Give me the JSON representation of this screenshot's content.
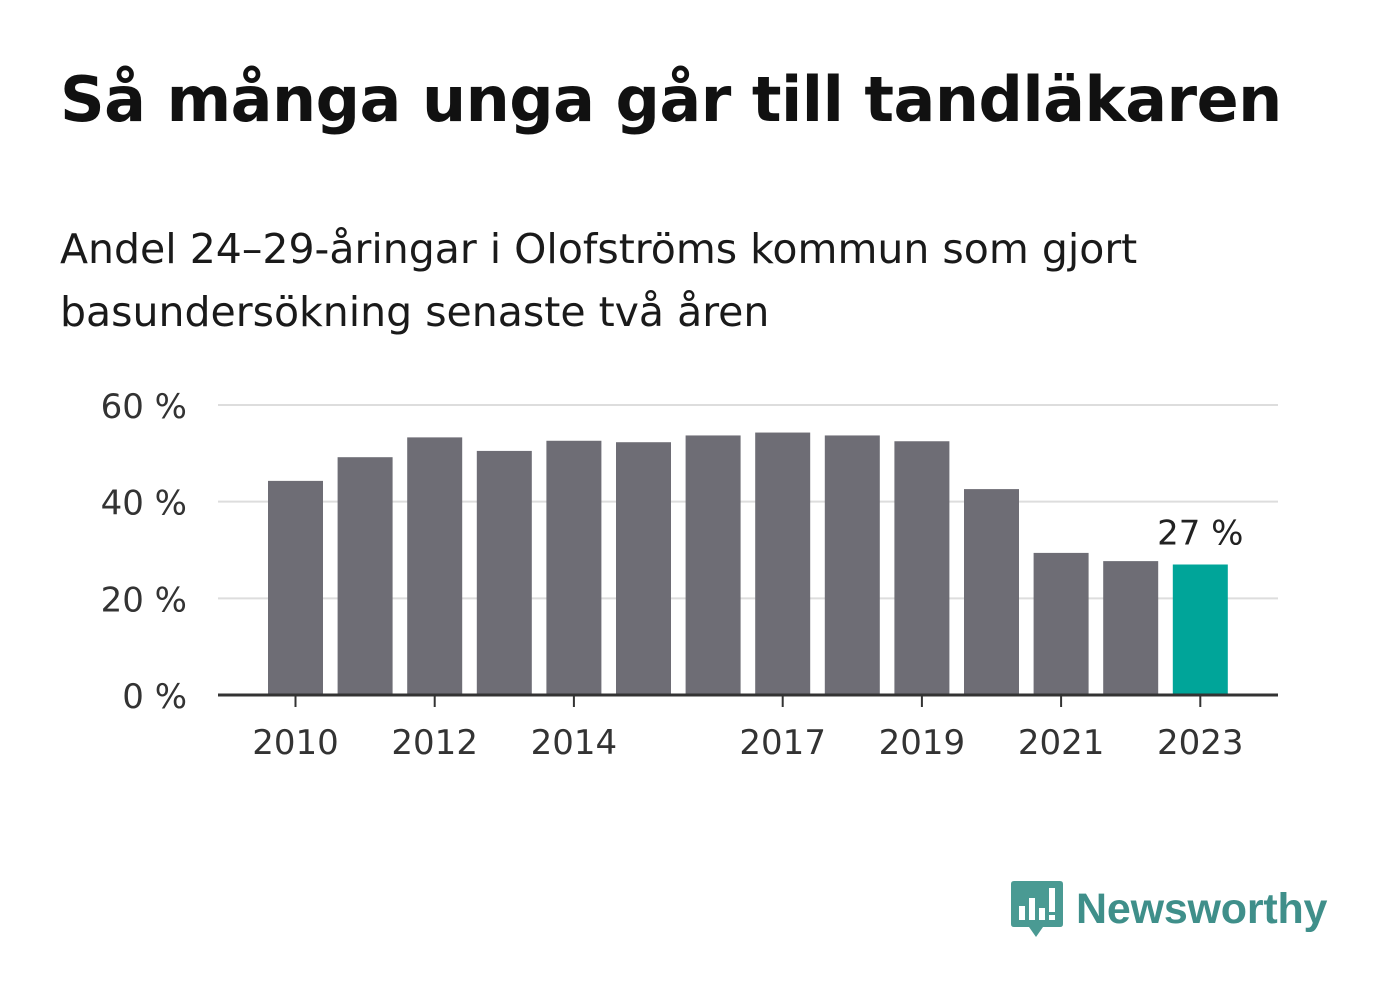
{
  "header": {
    "title": "Så många unga går till tandläkaren",
    "subtitle": "Andel 24–29-åringar i Olofströms kommun som gjort basundersökning senaste två åren"
  },
  "chart_data": {
    "type": "bar",
    "categories": [
      "2010",
      "2011",
      "2012",
      "2013",
      "2014",
      "2015",
      "2016",
      "2017",
      "2018",
      "2019",
      "2020",
      "2021",
      "2022",
      "2023"
    ],
    "values": [
      44.3,
      49.2,
      53.3,
      50.5,
      52.6,
      52.3,
      53.7,
      54.3,
      53.7,
      52.5,
      42.6,
      29.4,
      27.7,
      27
    ],
    "x_tick_labels": [
      "2010",
      "2012",
      "2014",
      "2017",
      "2019",
      "2021",
      "2023"
    ],
    "y_ticks": [
      {
        "value": 0,
        "label": "0 %"
      },
      {
        "value": 20,
        "label": "20 %"
      },
      {
        "value": 40,
        "label": "40 %"
      },
      {
        "value": 60,
        "label": "60 %"
      }
    ],
    "ylim": [
      0,
      60
    ],
    "grid": true,
    "bar_color": "#6e6d75",
    "highlight_color": "#00a599",
    "highlight_category": "2023",
    "annotation": {
      "category": "2023",
      "label": "27 %"
    }
  },
  "brand": {
    "name": "Newsworthy",
    "color": "#3f8f8a",
    "icon": "newsworthy-bar-chart-bubble-icon"
  }
}
